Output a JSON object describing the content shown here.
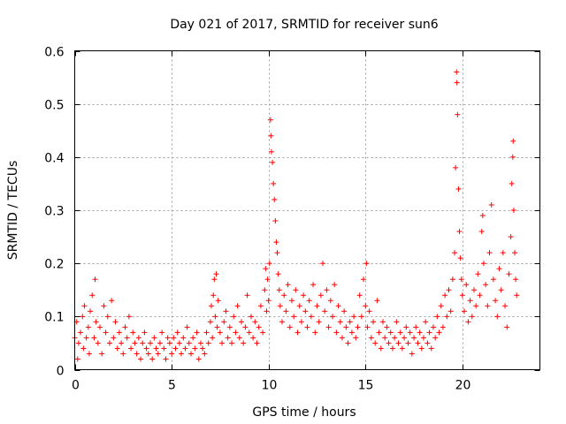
{
  "chart_data": {
    "type": "scatter",
    "title": "Day 021 of 2017, SRMTID for receiver sun6",
    "xlabel": "GPS time / hours",
    "ylabel": "SRMTID / TECUs",
    "xlim": [
      0,
      24
    ],
    "ylim": [
      0,
      0.6
    ],
    "grid": true,
    "marker": "+",
    "color": "#ff0000",
    "xticks": [
      0,
      5,
      10,
      15,
      20
    ],
    "xtick_labels": [
      "0",
      "5",
      "10",
      "15",
      "20"
    ],
    "yticks": [
      0,
      0.1,
      0.2,
      0.3,
      0.4,
      0.5,
      0.6
    ],
    "ytick_labels": [
      "0",
      "0.1",
      "0.2",
      "0.3",
      "0.4",
      "0.5",
      "0.6"
    ],
    "series": [
      {
        "name": "SRMTID",
        "points": [
          [
            0.0,
            0.06
          ],
          [
            0.1,
            0.09
          ],
          [
            0.15,
            0.02
          ],
          [
            0.2,
            0.05
          ],
          [
            0.3,
            0.07
          ],
          [
            0.4,
            0.1
          ],
          [
            0.45,
            0.04
          ],
          [
            0.5,
            0.12
          ],
          [
            0.6,
            0.06
          ],
          [
            0.7,
            0.08
          ],
          [
            0.75,
            0.03
          ],
          [
            0.8,
            0.11
          ],
          [
            0.9,
            0.14
          ],
          [
            1.0,
            0.06
          ],
          [
            1.05,
            0.17
          ],
          [
            1.1,
            0.09
          ],
          [
            1.2,
            0.05
          ],
          [
            1.3,
            0.08
          ],
          [
            1.4,
            0.03
          ],
          [
            1.5,
            0.12
          ],
          [
            1.6,
            0.07
          ],
          [
            1.7,
            0.1
          ],
          [
            1.8,
            0.05
          ],
          [
            1.9,
            0.13
          ],
          [
            2.0,
            0.06
          ],
          [
            2.1,
            0.09
          ],
          [
            2.2,
            0.04
          ],
          [
            2.3,
            0.07
          ],
          [
            2.4,
            0.05
          ],
          [
            2.5,
            0.03
          ],
          [
            2.6,
            0.08
          ],
          [
            2.7,
            0.06
          ],
          [
            2.8,
            0.1
          ],
          [
            2.9,
            0.04
          ],
          [
            3.0,
            0.07
          ],
          [
            3.1,
            0.05
          ],
          [
            3.2,
            0.03
          ],
          [
            3.3,
            0.06
          ],
          [
            3.4,
            0.02
          ],
          [
            3.5,
            0.05
          ],
          [
            3.6,
            0.07
          ],
          [
            3.7,
            0.04
          ],
          [
            3.8,
            0.03
          ],
          [
            3.9,
            0.05
          ],
          [
            4.0,
            0.02
          ],
          [
            4.1,
            0.06
          ],
          [
            4.2,
            0.04
          ],
          [
            4.3,
            0.03
          ],
          [
            4.4,
            0.05
          ],
          [
            4.5,
            0.07
          ],
          [
            4.6,
            0.04
          ],
          [
            4.7,
            0.02
          ],
          [
            4.8,
            0.06
          ],
          [
            4.9,
            0.05
          ],
          [
            5.0,
            0.03
          ],
          [
            5.1,
            0.06
          ],
          [
            5.2,
            0.04
          ],
          [
            5.3,
            0.07
          ],
          [
            5.4,
            0.05
          ],
          [
            5.5,
            0.03
          ],
          [
            5.6,
            0.06
          ],
          [
            5.7,
            0.04
          ],
          [
            5.8,
            0.08
          ],
          [
            5.9,
            0.05
          ],
          [
            6.0,
            0.03
          ],
          [
            6.1,
            0.06
          ],
          [
            6.2,
            0.04
          ],
          [
            6.3,
            0.07
          ],
          [
            6.4,
            0.02
          ],
          [
            6.5,
            0.05
          ],
          [
            6.6,
            0.04
          ],
          [
            6.7,
            0.03
          ],
          [
            6.8,
            0.07
          ],
          [
            6.9,
            0.05
          ],
          [
            7.0,
            0.09
          ],
          [
            7.05,
            0.12
          ],
          [
            7.1,
            0.06
          ],
          [
            7.15,
            0.14
          ],
          [
            7.2,
            0.17
          ],
          [
            7.25,
            0.1
          ],
          [
            7.3,
            0.18
          ],
          [
            7.35,
            0.08
          ],
          [
            7.4,
            0.13
          ],
          [
            7.5,
            0.07
          ],
          [
            7.6,
            0.05
          ],
          [
            7.7,
            0.09
          ],
          [
            7.8,
            0.11
          ],
          [
            7.9,
            0.06
          ],
          [
            8.0,
            0.08
          ],
          [
            8.1,
            0.05
          ],
          [
            8.2,
            0.1
          ],
          [
            8.3,
            0.07
          ],
          [
            8.4,
            0.12
          ],
          [
            8.5,
            0.06
          ],
          [
            8.6,
            0.09
          ],
          [
            8.7,
            0.05
          ],
          [
            8.8,
            0.08
          ],
          [
            8.9,
            0.14
          ],
          [
            9.0,
            0.07
          ],
          [
            9.1,
            0.1
          ],
          [
            9.2,
            0.06
          ],
          [
            9.3,
            0.09
          ],
          [
            9.4,
            0.05
          ],
          [
            9.5,
            0.08
          ],
          [
            9.6,
            0.12
          ],
          [
            9.7,
            0.07
          ],
          [
            9.8,
            0.15
          ],
          [
            9.85,
            0.19
          ],
          [
            9.9,
            0.11
          ],
          [
            9.95,
            0.17
          ],
          [
            10.0,
            0.13
          ],
          [
            10.05,
            0.2
          ],
          [
            10.1,
            0.47
          ],
          [
            10.12,
            0.44
          ],
          [
            10.15,
            0.41
          ],
          [
            10.2,
            0.39
          ],
          [
            10.25,
            0.35
          ],
          [
            10.3,
            0.32
          ],
          [
            10.35,
            0.28
          ],
          [
            10.4,
            0.24
          ],
          [
            10.45,
            0.22
          ],
          [
            10.5,
            0.18
          ],
          [
            10.55,
            0.15
          ],
          [
            10.6,
            0.12
          ],
          [
            10.7,
            0.09
          ],
          [
            10.8,
            0.14
          ],
          [
            10.9,
            0.11
          ],
          [
            11.0,
            0.16
          ],
          [
            11.1,
            0.08
          ],
          [
            11.2,
            0.13
          ],
          [
            11.3,
            0.1
          ],
          [
            11.4,
            0.15
          ],
          [
            11.5,
            0.07
          ],
          [
            11.6,
            0.12
          ],
          [
            11.7,
            0.09
          ],
          [
            11.8,
            0.14
          ],
          [
            11.9,
            0.11
          ],
          [
            12.0,
            0.08
          ],
          [
            12.1,
            0.13
          ],
          [
            12.2,
            0.1
          ],
          [
            12.3,
            0.16
          ],
          [
            12.4,
            0.07
          ],
          [
            12.5,
            0.12
          ],
          [
            12.6,
            0.09
          ],
          [
            12.7,
            0.14
          ],
          [
            12.8,
            0.2
          ],
          [
            12.9,
            0.11
          ],
          [
            13.0,
            0.15
          ],
          [
            13.1,
            0.08
          ],
          [
            13.2,
            0.13
          ],
          [
            13.3,
            0.1
          ],
          [
            13.4,
            0.16
          ],
          [
            13.5,
            0.07
          ],
          [
            13.6,
            0.12
          ],
          [
            13.7,
            0.09
          ],
          [
            13.8,
            0.06
          ],
          [
            13.9,
            0.11
          ],
          [
            14.0,
            0.08
          ],
          [
            14.1,
            0.05
          ],
          [
            14.2,
            0.09
          ],
          [
            14.3,
            0.07
          ],
          [
            14.4,
            0.1
          ],
          [
            14.5,
            0.06
          ],
          [
            14.6,
            0.08
          ],
          [
            14.7,
            0.14
          ],
          [
            14.8,
            0.1
          ],
          [
            14.9,
            0.17
          ],
          [
            15.0,
            0.12
          ],
          [
            15.05,
            0.2
          ],
          [
            15.1,
            0.08
          ],
          [
            15.2,
            0.11
          ],
          [
            15.3,
            0.06
          ],
          [
            15.4,
            0.09
          ],
          [
            15.5,
            0.05
          ],
          [
            15.6,
            0.13
          ],
          [
            15.7,
            0.07
          ],
          [
            15.8,
            0.04
          ],
          [
            15.9,
            0.09
          ],
          [
            16.0,
            0.06
          ],
          [
            16.1,
            0.08
          ],
          [
            16.2,
            0.05
          ],
          [
            16.3,
            0.07
          ],
          [
            16.4,
            0.04
          ],
          [
            16.5,
            0.06
          ],
          [
            16.6,
            0.09
          ],
          [
            16.7,
            0.05
          ],
          [
            16.8,
            0.07
          ],
          [
            16.9,
            0.04
          ],
          [
            17.0,
            0.06
          ],
          [
            17.1,
            0.08
          ],
          [
            17.2,
            0.05
          ],
          [
            17.3,
            0.07
          ],
          [
            17.4,
            0.03
          ],
          [
            17.5,
            0.06
          ],
          [
            17.6,
            0.08
          ],
          [
            17.7,
            0.05
          ],
          [
            17.8,
            0.07
          ],
          [
            17.9,
            0.04
          ],
          [
            18.0,
            0.06
          ],
          [
            18.1,
            0.09
          ],
          [
            18.2,
            0.05
          ],
          [
            18.3,
            0.07
          ],
          [
            18.4,
            0.04
          ],
          [
            18.5,
            0.08
          ],
          [
            18.6,
            0.06
          ],
          [
            18.7,
            0.1
          ],
          [
            18.8,
            0.07
          ],
          [
            18.9,
            0.12
          ],
          [
            19.0,
            0.08
          ],
          [
            19.1,
            0.14
          ],
          [
            19.2,
            0.1
          ],
          [
            19.3,
            0.15
          ],
          [
            19.4,
            0.11
          ],
          [
            19.5,
            0.17
          ],
          [
            19.6,
            0.22
          ],
          [
            19.65,
            0.38
          ],
          [
            19.7,
            0.56
          ],
          [
            19.72,
            0.54
          ],
          [
            19.75,
            0.48
          ],
          [
            19.8,
            0.34
          ],
          [
            19.85,
            0.26
          ],
          [
            19.9,
            0.21
          ],
          [
            19.95,
            0.17
          ],
          [
            20.0,
            0.14
          ],
          [
            20.1,
            0.11
          ],
          [
            20.2,
            0.16
          ],
          [
            20.3,
            0.09
          ],
          [
            20.4,
            0.13
          ],
          [
            20.5,
            0.1
          ],
          [
            20.6,
            0.15
          ],
          [
            20.7,
            0.12
          ],
          [
            20.8,
            0.18
          ],
          [
            20.9,
            0.14
          ],
          [
            21.0,
            0.26
          ],
          [
            21.05,
            0.29
          ],
          [
            21.1,
            0.2
          ],
          [
            21.2,
            0.16
          ],
          [
            21.3,
            0.12
          ],
          [
            21.4,
            0.22
          ],
          [
            21.5,
            0.31
          ],
          [
            21.6,
            0.17
          ],
          [
            21.7,
            0.13
          ],
          [
            21.8,
            0.1
          ],
          [
            21.9,
            0.19
          ],
          [
            22.0,
            0.15
          ],
          [
            22.1,
            0.22
          ],
          [
            22.2,
            0.12
          ],
          [
            22.3,
            0.08
          ],
          [
            22.4,
            0.18
          ],
          [
            22.5,
            0.25
          ],
          [
            22.55,
            0.35
          ],
          [
            22.6,
            0.4
          ],
          [
            22.62,
            0.43
          ],
          [
            22.65,
            0.3
          ],
          [
            22.7,
            0.22
          ],
          [
            22.75,
            0.17
          ],
          [
            22.8,
            0.14
          ]
        ]
      }
    ]
  }
}
